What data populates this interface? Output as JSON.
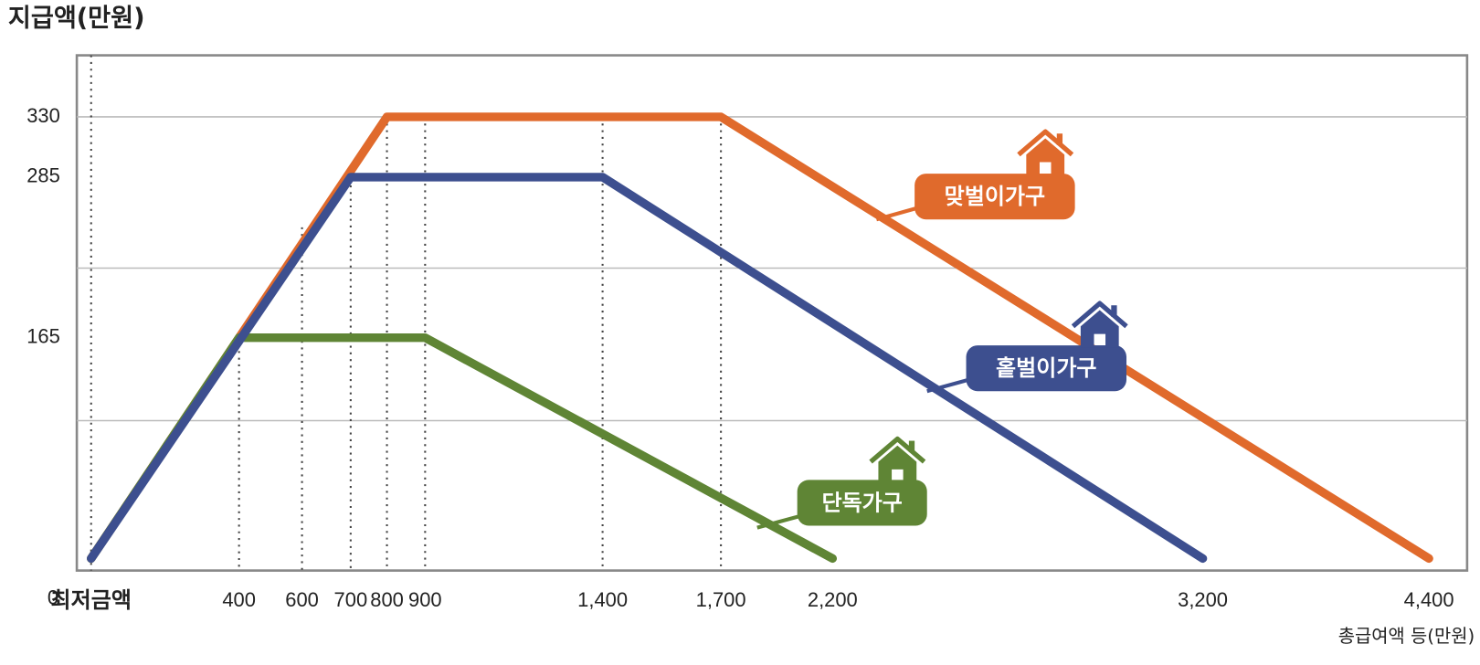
{
  "chart_data": {
    "type": "line",
    "y_label": "지급액(만원)",
    "x_label": "총급여액 등(만원)",
    "xticks": [
      {
        "value": 0,
        "label": "최저금액"
      },
      400,
      600,
      700,
      800,
      900,
      {
        "value": 1400,
        "label": "1,400"
      },
      {
        "value": 1700,
        "label": "1,700"
      },
      {
        "value": 2200,
        "label": "2,200"
      },
      {
        "value": 3200,
        "label": "3,200"
      },
      {
        "value": 4400,
        "label": "4,400"
      }
    ],
    "ylim": [
      -9,
      376
    ],
    "yticks": [
      0,
      165,
      285,
      330
    ],
    "grid_values": [
      103,
      217,
      330
    ],
    "series": [
      {
        "name": "맞벌이가구",
        "color": "#e06a2c",
        "x": [
          0,
          800,
          1700,
          4400
        ],
        "values": [
          0,
          330,
          330,
          0
        ]
      },
      {
        "name": "단독가구",
        "color": "#5f8535",
        "x": [
          0,
          400,
          900,
          2200
        ],
        "values": [
          0,
          165,
          165,
          0
        ]
      },
      {
        "name": "홑벌이가구",
        "color": "#3d4f8f",
        "x": [
          0,
          700,
          1400,
          3200
        ],
        "values": [
          0,
          285,
          285,
          0
        ]
      }
    ]
  }
}
